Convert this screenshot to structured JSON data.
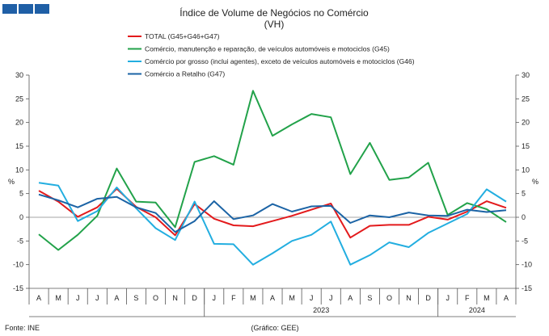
{
  "header": {
    "blocks": 3
  },
  "chart_data": {
    "type": "line",
    "title": "Índice de Volume de Negócios no Comércio",
    "subtitle": "(VH)",
    "ylabel_left": "%",
    "ylabel_right": "%",
    "ylim": [
      -15,
      30
    ],
    "yticks": [
      -15,
      -10,
      -5,
      0,
      5,
      10,
      15,
      20,
      25,
      30
    ],
    "categories": [
      "A",
      "M",
      "J",
      "J",
      "A",
      "S",
      "O",
      "N",
      "D",
      "J",
      "F",
      "M",
      "A",
      "M",
      "J",
      "J",
      "A",
      "S",
      "O",
      "N",
      "D",
      "J",
      "F",
      "M",
      "A"
    ],
    "year_labels": [
      "2023",
      "2024"
    ],
    "legend_position": "top",
    "grid": false,
    "series": [
      {
        "name": "TOTAL (G45+G46+G47)",
        "color": "#e31a1c",
        "values": [
          5.6,
          3.3,
          0.1,
          2.1,
          6.0,
          2.2,
          0.0,
          -3.8,
          2.8,
          -0.3,
          -1.7,
          -1.9,
          -0.8,
          0.3,
          1.6,
          2.9,
          -4.3,
          -1.8,
          -1.6,
          -1.6,
          0.1,
          -0.5,
          1.2,
          3.4,
          2.0
        ]
      },
      {
        "name": "Comércio, manutenção e reparação, de veículos automóveis e motociclos (G45)",
        "color": "#22a24a",
        "values": [
          -3.6,
          -6.9,
          -3.7,
          0.3,
          10.3,
          3.3,
          3.1,
          -2.1,
          11.7,
          12.9,
          11.1,
          26.7,
          17.2,
          19.6,
          21.8,
          21.1,
          9.1,
          15.7,
          7.9,
          8.4,
          11.5,
          0.5,
          3.0,
          1.7,
          -1.0
        ]
      },
      {
        "name": "Comércio por grosso (inclui agentes), exceto de veículos automóveis e motociclos (G46)",
        "color": "#23aee0",
        "values": [
          7.3,
          6.7,
          -0.8,
          1.3,
          6.3,
          1.9,
          -2.3,
          -4.8,
          3.3,
          -5.6,
          -5.7,
          -10.0,
          -7.6,
          -5.0,
          -3.7,
          -0.9,
          -10.0,
          -8.0,
          -5.3,
          -6.3,
          -3.3,
          -1.3,
          0.7,
          5.9,
          3.3
        ]
      },
      {
        "name": "Comércio a Retalho (G47)",
        "color": "#1b63a5",
        "values": [
          4.8,
          3.6,
          2.1,
          3.9,
          4.3,
          2.1,
          0.9,
          -3.1,
          -0.8,
          3.4,
          -0.4,
          0.4,
          2.8,
          1.2,
          2.3,
          2.4,
          -1.2,
          0.4,
          0.0,
          1.0,
          0.4,
          0.3,
          1.6,
          1.1,
          1.5
        ]
      }
    ]
  },
  "footer": {
    "source": "Fonte: INE",
    "credit": "(Gráfico: GEE)"
  }
}
